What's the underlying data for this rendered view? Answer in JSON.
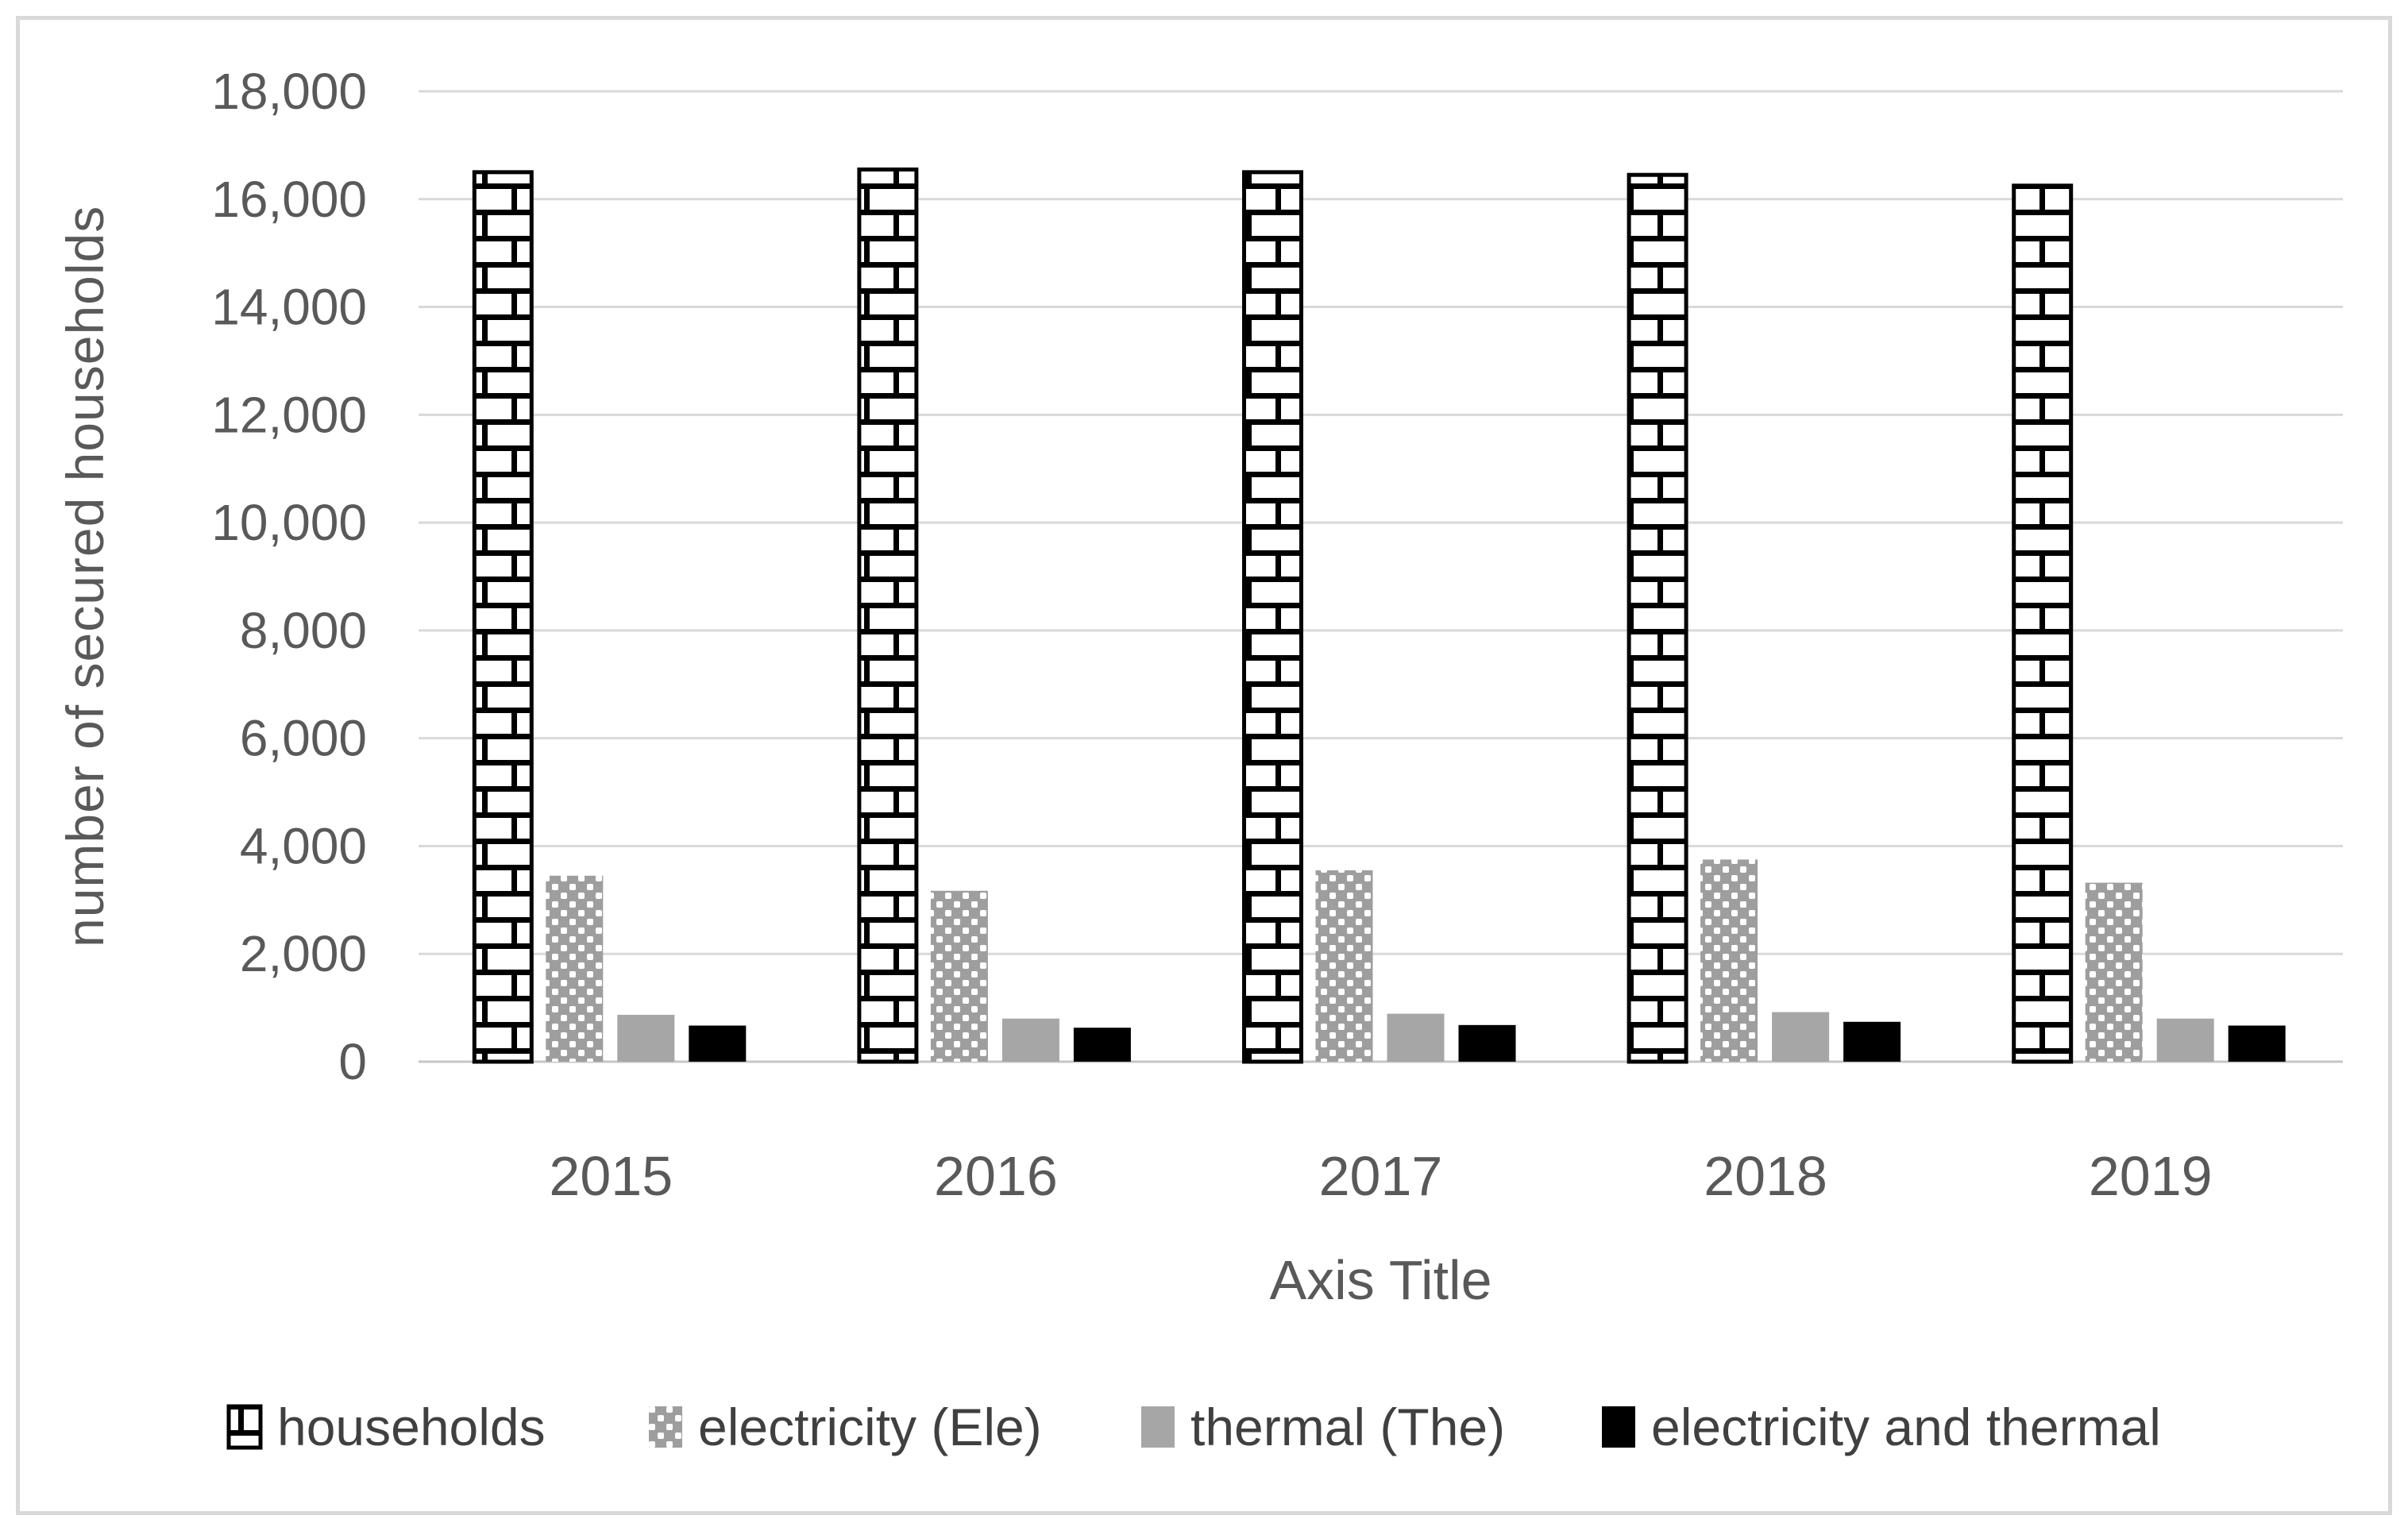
{
  "chart_data": {
    "type": "bar",
    "title": "",
    "categories": [
      "2015",
      "2016",
      "2017",
      "2018",
      "2019"
    ],
    "series": [
      {
        "name": "households",
        "pattern": "brick",
        "color": "#000000",
        "values": [
          16500,
          16550,
          16500,
          16450,
          16250
        ]
      },
      {
        "name": "electricity (Ele)",
        "pattern": "dots",
        "color": "#9e9e9e",
        "values": [
          3450,
          3170,
          3550,
          3750,
          3320
        ]
      },
      {
        "name": "thermal (The)",
        "pattern": "solid",
        "color": "#a6a6a6",
        "values": [
          870,
          800,
          890,
          920,
          800
        ]
      },
      {
        "name": "electricity and thermal",
        "pattern": "solid",
        "color": "#000000",
        "values": [
          670,
          630,
          680,
          740,
          670
        ]
      }
    ],
    "ylabel": "number of secured households",
    "xlabel": "Axis Title",
    "ylim": [
      0,
      18000
    ],
    "ytick_step": 2000,
    "ytick_labels": [
      "0",
      "2,000",
      "4,000",
      "6,000",
      "8,000",
      "10,000",
      "12,000",
      "14,000",
      "16,000",
      "18,000"
    ],
    "grid": true,
    "legend_position": "bottom",
    "colors": {
      "gridline": "#d9d9d9",
      "axis_line": "#c6c6c6",
      "axis_text": "#595959",
      "legend_text": "#404040",
      "pattern_dot_bg": "#9e9e9e",
      "frame_border": "#d9d9d9"
    }
  }
}
